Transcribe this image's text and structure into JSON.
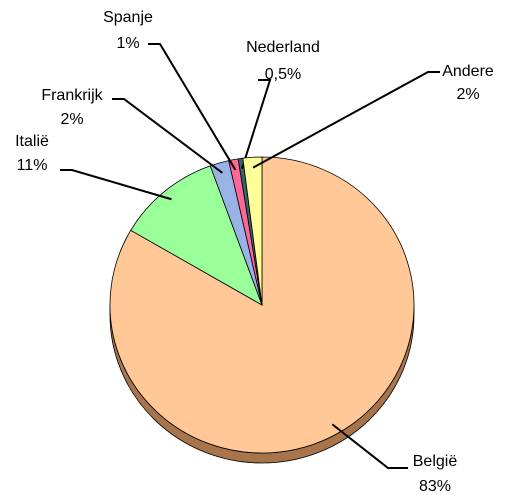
{
  "chart_data": {
    "type": "pie",
    "categories": [
      "België",
      "Italië",
      "Frankrijk",
      "Spanje",
      "Nederland",
      "Andere"
    ],
    "values": [
      83,
      11,
      2,
      1,
      0.5,
      2
    ],
    "value_labels": [
      "83%",
      "11%",
      "2%",
      "1%",
      "0,5%",
      "2%"
    ],
    "colors": [
      "#ffc896",
      "#99ff99",
      "#99b3e6",
      "#ff6699",
      "#336666",
      "#ffff99"
    ]
  }
}
